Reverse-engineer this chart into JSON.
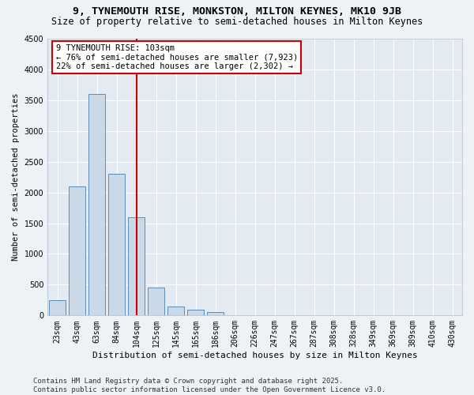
{
  "title1": "9, TYNEMOUTH RISE, MONKSTON, MILTON KEYNES, MK10 9JB",
  "title2": "Size of property relative to semi-detached houses in Milton Keynes",
  "xlabel": "Distribution of semi-detached houses by size in Milton Keynes",
  "ylabel": "Number of semi-detached properties",
  "categories": [
    "23sqm",
    "43sqm",
    "63sqm",
    "84sqm",
    "104sqm",
    "125sqm",
    "145sqm",
    "165sqm",
    "186sqm",
    "206sqm",
    "226sqm",
    "247sqm",
    "267sqm",
    "287sqm",
    "308sqm",
    "328sqm",
    "349sqm",
    "369sqm",
    "389sqm",
    "410sqm",
    "430sqm"
  ],
  "values": [
    250,
    2100,
    3600,
    2300,
    1600,
    450,
    150,
    100,
    55,
    10,
    5,
    2,
    1,
    0,
    0,
    0,
    0,
    0,
    0,
    0,
    0
  ],
  "bar_color": "#c9d9e8",
  "bar_edge_color": "#5b8db8",
  "highlight_index": 4,
  "highlight_line_color": "#cc0000",
  "annotation_box_color": "#cc0000",
  "annotation_text": "9 TYNEMOUTH RISE: 103sqm\n← 76% of semi-detached houses are smaller (7,923)\n22% of semi-detached houses are larger (2,302) →",
  "ylim": [
    0,
    4500
  ],
  "yticks": [
    0,
    500,
    1000,
    1500,
    2000,
    2500,
    3000,
    3500,
    4000,
    4500
  ],
  "background_color": "#eef2f7",
  "plot_bg_color": "#e4eaf2",
  "grid_color": "#ffffff",
  "footer": "Contains HM Land Registry data © Crown copyright and database right 2025.\nContains public sector information licensed under the Open Government Licence v3.0.",
  "title1_fontsize": 9.5,
  "title2_fontsize": 8.5,
  "xlabel_fontsize": 8,
  "ylabel_fontsize": 7.5,
  "tick_fontsize": 7,
  "annotation_fontsize": 7.5,
  "footer_fontsize": 6.5
}
